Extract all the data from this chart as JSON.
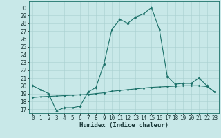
{
  "title": "",
  "xlabel": "Humidex (Indice chaleur)",
  "background_color": "#c8e8e8",
  "line_color": "#1a7068",
  "x_ticks": [
    0,
    1,
    2,
    3,
    4,
    5,
    6,
    7,
    8,
    9,
    10,
    11,
    12,
    13,
    14,
    15,
    16,
    17,
    18,
    19,
    20,
    21,
    22,
    23
  ],
  "y_ticks": [
    17,
    18,
    19,
    20,
    21,
    22,
    23,
    24,
    25,
    26,
    27,
    28,
    29,
    30
  ],
  "ylim": [
    16.5,
    30.8
  ],
  "xlim": [
    -0.5,
    23.5
  ],
  "series1_x": [
    0,
    1,
    2,
    3,
    4,
    5,
    6,
    7,
    8,
    9,
    10,
    11,
    12,
    13,
    14,
    15,
    16,
    17,
    18,
    19,
    20,
    21,
    22,
    23
  ],
  "series1_y": [
    20.0,
    19.5,
    19.0,
    16.8,
    17.2,
    17.2,
    17.4,
    19.2,
    19.8,
    22.8,
    27.2,
    28.5,
    28.0,
    28.8,
    29.2,
    30.0,
    27.2,
    21.2,
    20.2,
    20.3,
    20.3,
    21.0,
    20.0,
    19.2
  ],
  "series2_x": [
    0,
    1,
    2,
    3,
    4,
    5,
    6,
    7,
    8,
    9,
    10,
    11,
    12,
    13,
    14,
    15,
    16,
    17,
    18,
    19,
    20,
    21,
    22,
    23
  ],
  "series2_y": [
    18.5,
    18.6,
    18.65,
    18.7,
    18.75,
    18.8,
    18.85,
    18.9,
    19.0,
    19.1,
    19.3,
    19.4,
    19.5,
    19.6,
    19.7,
    19.8,
    19.85,
    19.9,
    19.95,
    20.0,
    20.0,
    20.0,
    19.9,
    19.2
  ],
  "grid_color": "#a8d0d0",
  "tick_fontsize": 5.5,
  "label_fontsize": 6.5
}
